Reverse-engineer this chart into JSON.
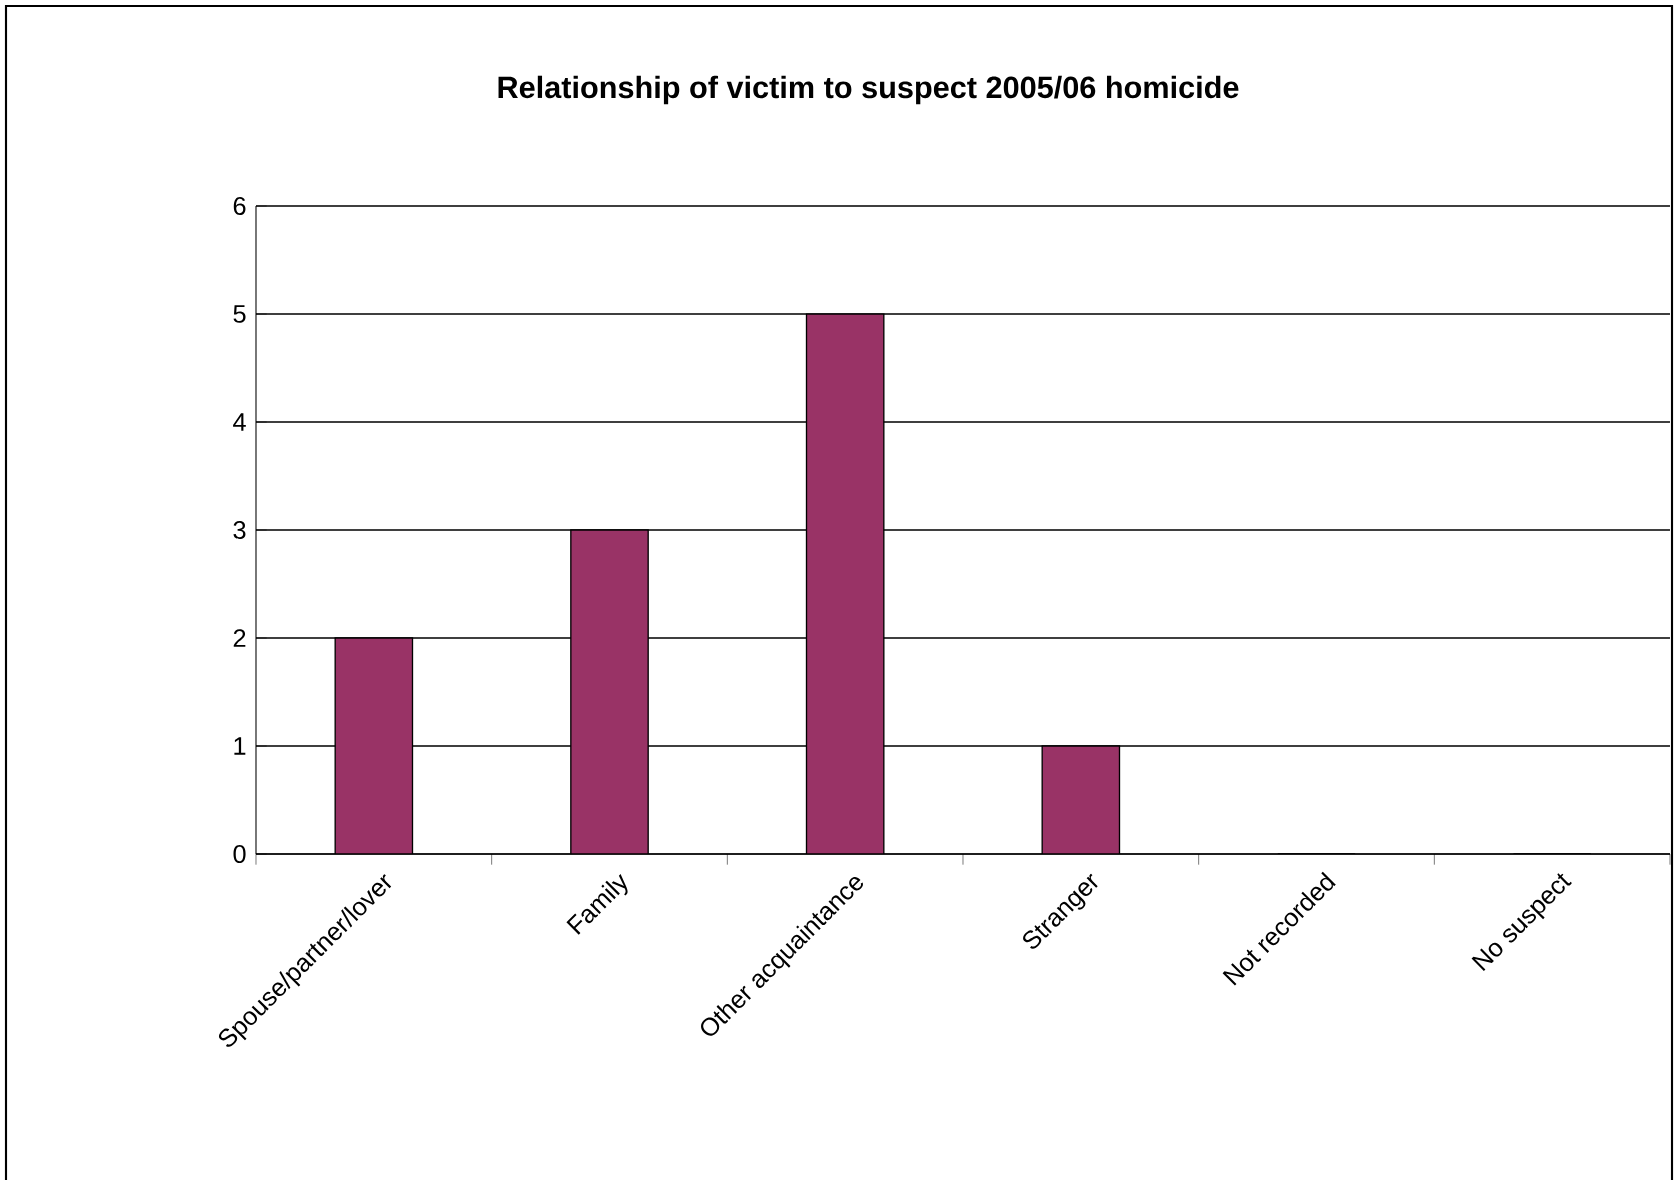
{
  "chart_data": {
    "type": "bar",
    "title": "Relationship of victim to suspect 2005/06 homicide",
    "categories": [
      "Spouse/partner/lover",
      "Family",
      "Other acquaintance",
      "Stranger",
      "Not recorded",
      "No suspect"
    ],
    "values": [
      2,
      3,
      5,
      1,
      0,
      0
    ],
    "color": "#993366",
    "ylim": [
      0,
      6
    ],
    "yticks": [
      0,
      1,
      2,
      3,
      4,
      5,
      6
    ],
    "grid": "y"
  }
}
